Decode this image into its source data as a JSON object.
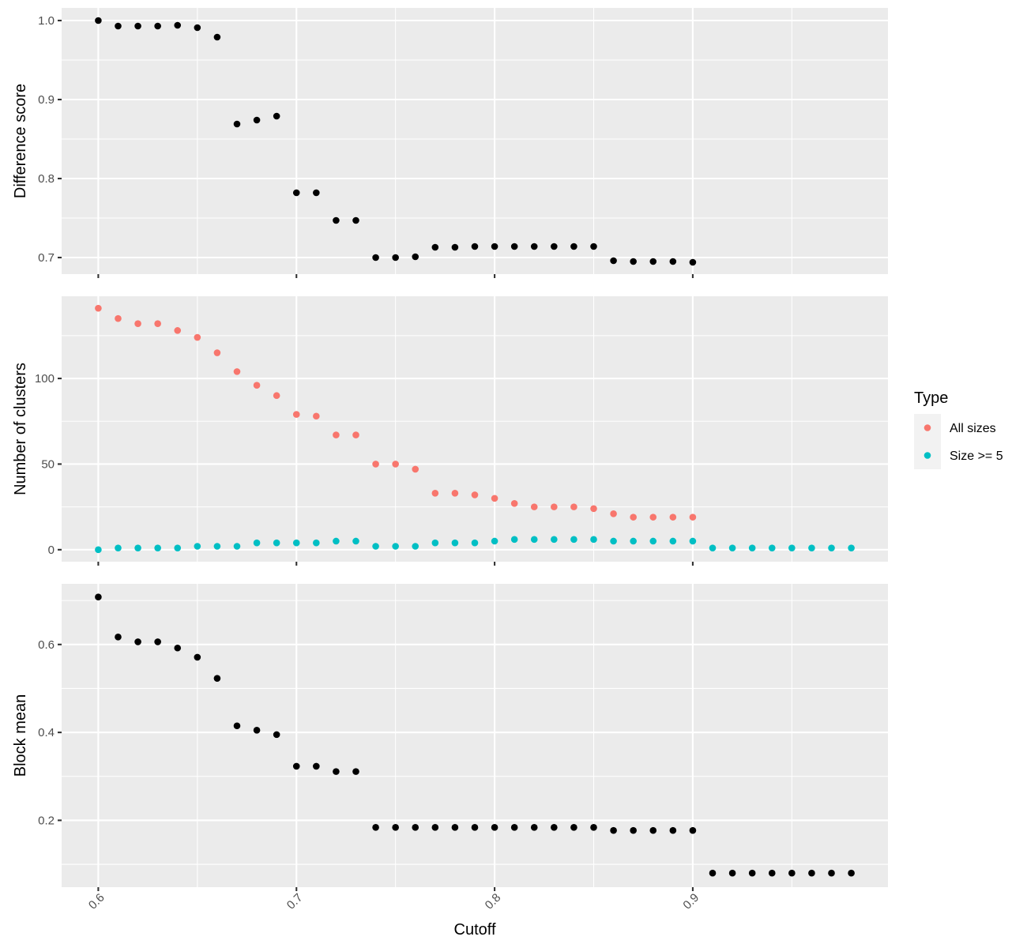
{
  "chart_data": {
    "type": "scatter",
    "xlabel": "Cutoff",
    "x_ticks": [
      0.6,
      0.7,
      0.8,
      0.9
    ],
    "x_tick_labels": [
      "0.6",
      "0.7",
      "0.8",
      "0.9"
    ],
    "xlim": [
      0.5815,
      0.9985
    ],
    "grid": true,
    "legend": {
      "title": "Type",
      "placement": "right",
      "entries": [
        {
          "label": "All sizes",
          "color": "#F8766D"
        },
        {
          "label": "Size >= 5",
          "color": "#00BFC4"
        }
      ]
    },
    "panels": [
      {
        "ylabel": "Difference score",
        "ylim": [
          0.679,
          1.016
        ],
        "y_ticks": [
          0.7,
          0.8,
          0.9,
          1.0
        ],
        "y_tick_labels": [
          "0.7",
          "0.8",
          "0.9",
          "1.0"
        ],
        "series": [
          {
            "color": "#000000",
            "x": [
              0.6,
              0.61,
              0.62,
              0.63,
              0.64,
              0.65,
              0.66,
              0.67,
              0.68,
              0.69,
              0.7,
              0.71,
              0.72,
              0.73,
              0.74,
              0.75,
              0.76,
              0.77,
              0.78,
              0.79,
              0.8,
              0.81,
              0.82,
              0.83,
              0.84,
              0.85,
              0.86,
              0.87,
              0.88,
              0.89,
              0.9
            ],
            "y": [
              1.0,
              0.993,
              0.993,
              0.993,
              0.994,
              0.991,
              0.979,
              0.869,
              0.874,
              0.879,
              0.782,
              0.782,
              0.747,
              0.747,
              0.7,
              0.7,
              0.701,
              0.713,
              0.713,
              0.714,
              0.714,
              0.714,
              0.714,
              0.714,
              0.714,
              0.714,
              0.696,
              0.695,
              0.695,
              0.695,
              0.694
            ]
          }
        ]
      },
      {
        "ylabel": "Number of clusters",
        "ylim": [
          -7,
          148
        ],
        "y_ticks": [
          0,
          50,
          100
        ],
        "y_tick_labels": [
          "0",
          "50",
          "100"
        ],
        "series": [
          {
            "name": "All sizes",
            "color": "#F8766D",
            "x": [
              0.6,
              0.61,
              0.62,
              0.63,
              0.64,
              0.65,
              0.66,
              0.67,
              0.68,
              0.69,
              0.7,
              0.71,
              0.72,
              0.73,
              0.74,
              0.75,
              0.76,
              0.77,
              0.78,
              0.79,
              0.8,
              0.81,
              0.82,
              0.83,
              0.84,
              0.85,
              0.86,
              0.87,
              0.88,
              0.89,
              0.9
            ],
            "y": [
              141,
              135,
              132,
              132,
              128,
              124,
              115,
              104,
              96,
              90,
              79,
              78,
              67,
              67,
              50,
              50,
              47,
              33,
              33,
              32,
              30,
              27,
              25,
              25,
              25,
              24,
              21,
              19,
              19,
              19,
              19
            ]
          },
          {
            "name": "Size >= 5",
            "color": "#00BFC4",
            "x": [
              0.6,
              0.61,
              0.62,
              0.63,
              0.64,
              0.65,
              0.66,
              0.67,
              0.68,
              0.69,
              0.7,
              0.71,
              0.72,
              0.73,
              0.74,
              0.75,
              0.76,
              0.77,
              0.78,
              0.79,
              0.8,
              0.81,
              0.82,
              0.83,
              0.84,
              0.85,
              0.86,
              0.87,
              0.88,
              0.89,
              0.9,
              0.91,
              0.92,
              0.93,
              0.94,
              0.95,
              0.96,
              0.97,
              0.98
            ],
            "y": [
              0,
              1,
              1,
              1,
              1,
              2,
              2,
              2,
              4,
              4,
              4,
              4,
              5,
              5,
              2,
              2,
              2,
              4,
              4,
              4,
              5,
              6,
              6,
              6,
              6,
              6,
              5,
              5,
              5,
              5,
              5,
              1,
              1,
              1,
              1,
              1,
              1,
              1,
              1
            ]
          }
        ]
      },
      {
        "ylabel": "Block mean",
        "ylim": [
          0.048,
          0.738
        ],
        "y_ticks": [
          0.2,
          0.4,
          0.6
        ],
        "y_tick_labels": [
          "0.2",
          "0.4",
          "0.6"
        ],
        "series": [
          {
            "color": "#000000",
            "x": [
              0.6,
              0.61,
              0.62,
              0.63,
              0.64,
              0.65,
              0.66,
              0.67,
              0.68,
              0.69,
              0.7,
              0.71,
              0.72,
              0.73,
              0.74,
              0.75,
              0.76,
              0.77,
              0.78,
              0.79,
              0.8,
              0.81,
              0.82,
              0.83,
              0.84,
              0.85,
              0.86,
              0.87,
              0.88,
              0.89,
              0.9,
              0.91,
              0.92,
              0.93,
              0.94,
              0.95,
              0.96,
              0.97,
              0.98
            ],
            "y": [
              0.708,
              0.617,
              0.606,
              0.606,
              0.592,
              0.571,
              0.523,
              0.415,
              0.405,
              0.395,
              0.323,
              0.323,
              0.311,
              0.311,
              0.184,
              0.184,
              0.184,
              0.184,
              0.184,
              0.184,
              0.184,
              0.184,
              0.184,
              0.184,
              0.184,
              0.184,
              0.177,
              0.177,
              0.177,
              0.177,
              0.177,
              0.08,
              0.08,
              0.08,
              0.08,
              0.08,
              0.08,
              0.08,
              0.08
            ]
          }
        ]
      }
    ]
  }
}
